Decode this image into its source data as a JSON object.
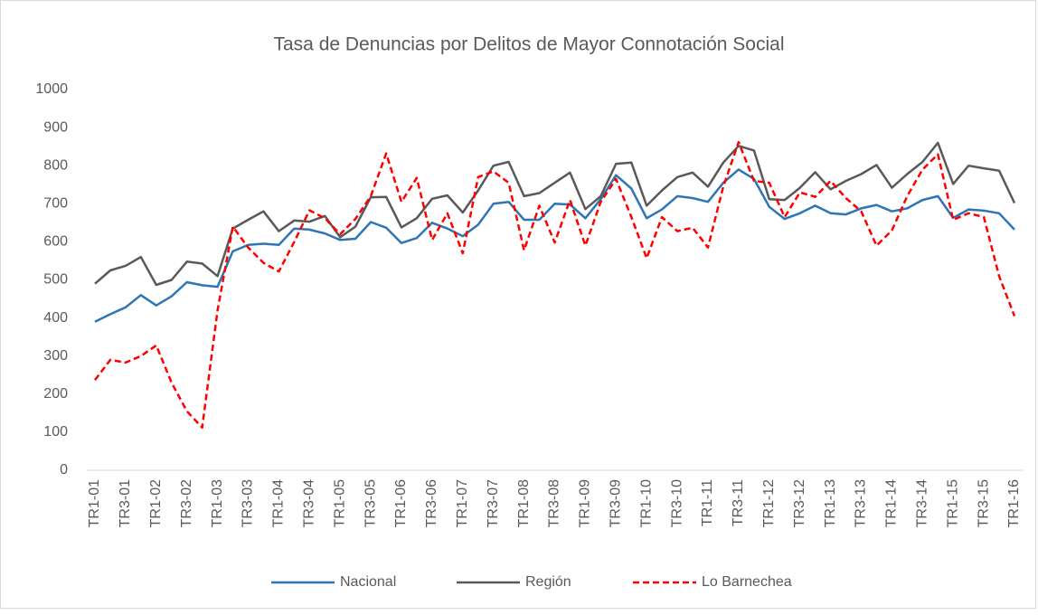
{
  "chart_data": {
    "type": "line",
    "title": "Tasa de Denuncias por Delitos de Mayor Connotación Social",
    "categories": [
      "TR1-01",
      null,
      "TR3-01",
      null,
      "TR1-02",
      null,
      "TR3-02",
      null,
      "TR1-03",
      null,
      "TR3-03",
      null,
      "TR1-04",
      null,
      "TR3-04",
      null,
      "TR1-05",
      null,
      "TR3-05",
      null,
      "TR1-06",
      null,
      "TR3-06",
      null,
      "TR1-07",
      null,
      "TR3-07",
      null,
      "TR1-08",
      null,
      "TR3-08",
      null,
      "TR1-09",
      null,
      "TR3-09",
      null,
      "TR1-10",
      null,
      "TR3-10",
      null,
      "TR1-11",
      null,
      "TR3-11",
      null,
      "TR1-12",
      null,
      "TR3-12",
      null,
      "TR1-13",
      null,
      "TR3-13",
      null,
      "TR1-14",
      null,
      "TR3-14",
      null,
      "TR1-15",
      null,
      "TR3-15",
      null,
      "TR1-16"
    ],
    "series": [
      {
        "name": "Nacional",
        "color": "#2e75b6",
        "dash": false,
        "values": [
          390,
          410,
          428,
          460,
          433,
          457,
          494,
          486,
          482,
          575,
          592,
          595,
          592,
          635,
          632,
          622,
          605,
          608,
          652,
          637,
          597,
          610,
          650,
          635,
          615,
          645,
          700,
          705,
          658,
          658,
          700,
          698,
          662,
          712,
          775,
          740,
          662,
          685,
          720,
          715,
          705,
          755,
          790,
          765,
          692,
          660,
          675,
          695,
          675,
          672,
          688,
          697,
          680,
          688,
          710,
          720,
          663,
          685,
          682,
          675,
          632
        ]
      },
      {
        "name": "Región",
        "color": "#595959",
        "dash": false,
        "values": [
          490,
          525,
          537,
          560,
          487,
          500,
          548,
          543,
          510,
          635,
          658,
          680,
          628,
          656,
          653,
          668,
          612,
          640,
          717,
          718,
          638,
          662,
          713,
          722,
          677,
          735,
          800,
          810,
          720,
          728,
          755,
          782,
          686,
          720,
          805,
          808,
          695,
          735,
          770,
          782,
          745,
          808,
          852,
          840,
          712,
          710,
          742,
          783,
          738,
          760,
          778,
          802,
          742,
          778,
          810,
          860,
          752,
          800,
          793,
          787,
          702
        ]
      },
      {
        "name": "Lo Barnechea",
        "color": "#ff0000",
        "dash": true,
        "values": [
          237,
          290,
          283,
          300,
          328,
          230,
          155,
          112,
          420,
          640,
          585,
          545,
          522,
          600,
          683,
          662,
          620,
          660,
          720,
          832,
          705,
          768,
          605,
          675,
          570,
          770,
          785,
          755,
          578,
          695,
          598,
          710,
          590,
          705,
          765,
          665,
          557,
          665,
          628,
          637,
          585,
          745,
          862,
          760,
          755,
          665,
          730,
          718,
          760,
          715,
          680,
          590,
          630,
          720,
          790,
          830,
          658,
          675,
          665,
          510,
          405
        ]
      }
    ],
    "ylim": [
      0,
      1000
    ],
    "yticks": [
      0,
      100,
      200,
      300,
      400,
      500,
      600,
      700,
      800,
      900,
      1000
    ],
    "grid": false,
    "legend": "bottom"
  }
}
